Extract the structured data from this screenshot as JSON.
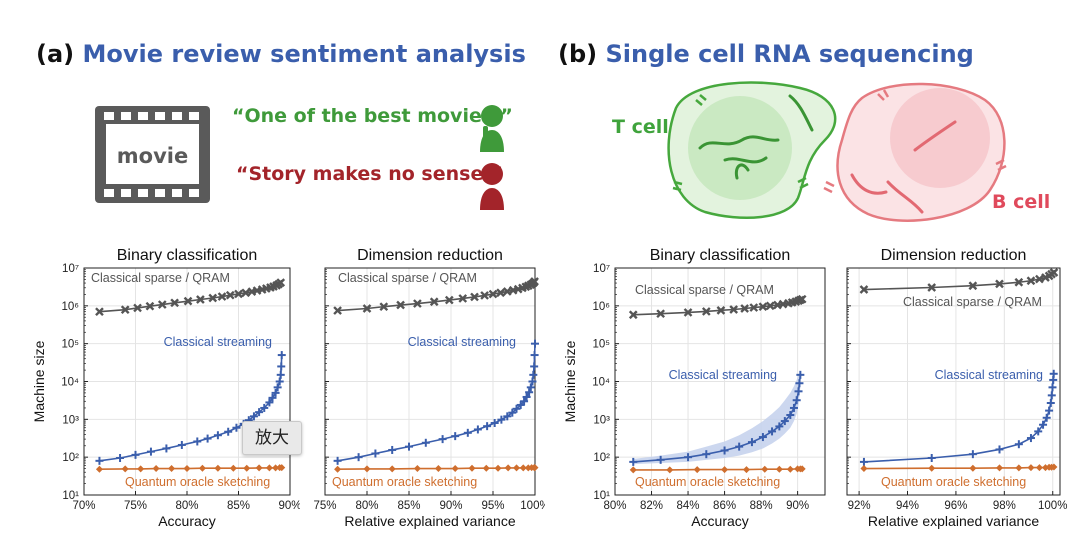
{
  "panels": [
    {
      "label": "(a)",
      "title": "Movie review sentiment analysis"
    },
    {
      "label": "(b)",
      "title": "Single cell RNA sequencing"
    }
  ],
  "illustration_a": {
    "film_label": "movie",
    "quote_positive": "“One of the best movies.”",
    "quote_negative": "“Story makes no sense.”",
    "positive_color": "#3f9a3a",
    "negative_color": "#a3242a",
    "film_color": "#5a5a5a",
    "icons": [
      "film-strip-icon",
      "thumbs-up-person-icon",
      "thumbs-down-person-icon"
    ]
  },
  "illustration_b": {
    "t_cell_label": "T cell",
    "b_cell_label": "B cell",
    "t_cell_color": "#3fa33c",
    "b_cell_color": "#e57a80",
    "icons": [
      "t-cell-icon",
      "b-cell-icon",
      "receptor-icon"
    ]
  },
  "tooltip": {
    "text": "放大"
  },
  "colors": {
    "classical_sparse": "#555555",
    "classical_streaming": "#3a5eac",
    "quantum_oracle": "#cf6e2e",
    "band": "#c3d0ec"
  },
  "chart_data": [
    {
      "type": "line",
      "title": "Binary classification",
      "xlabel": "Accuracy",
      "ylabel": "Machine size",
      "yscale": "log",
      "xlim": [
        70,
        90
      ],
      "ylim": [
        10,
        10000000
      ],
      "grid": true,
      "xticks": [
        70,
        75,
        80,
        85,
        90
      ],
      "xtick_labels": [
        "70%",
        "75%",
        "80%",
        "85%",
        "90%"
      ],
      "yticks": [
        10,
        100,
        1000,
        10000,
        100000,
        1000000,
        10000000
      ],
      "annotations": [
        "Classical sparse / QRAM",
        "Classical streaming",
        "Quantum oracle sketching"
      ],
      "series": [
        {
          "name": "Classical sparse / QRAM",
          "marker": "x",
          "x": [
            71.5,
            74,
            75.2,
            76.4,
            77.6,
            78.8,
            80.1,
            81.3,
            82.5,
            83.4,
            84.2,
            85,
            85.7,
            86.3,
            86.8,
            87.3,
            87.7,
            88.1,
            88.4,
            88.7,
            88.9,
            89.1
          ],
          "y": [
            700000,
            790000,
            880000,
            980000,
            1080000,
            1200000,
            1330000,
            1470000,
            1610000,
            1760000,
            1910000,
            2060000,
            2210000,
            2370000,
            2530000,
            2700000,
            2870000,
            3050000,
            3250000,
            3480000,
            3750000,
            4100000
          ]
        },
        {
          "name": "Classical streaming",
          "marker": "+",
          "x": [
            71.5,
            73.5,
            75,
            76.5,
            78,
            79.5,
            81,
            82,
            83,
            84,
            84.8,
            85.5,
            86,
            86.5,
            87,
            87.5,
            88,
            88.3,
            88.6,
            88.8,
            89,
            89.1,
            89.15,
            89.2
          ],
          "y": [
            80,
            95,
            115,
            140,
            170,
            210,
            260,
            310,
            380,
            470,
            600,
            760,
            950,
            1200,
            1550,
            2000,
            2800,
            3700,
            5000,
            7000,
            10000,
            15000,
            25000,
            50000
          ]
        },
        {
          "name": "Quantum oracle sketching",
          "marker": "D",
          "x": [
            71.5,
            74,
            75.5,
            77,
            78.5,
            80,
            81.5,
            83,
            84.5,
            85.8,
            87,
            88,
            88.6,
            89,
            89.2
          ],
          "y": [
            48,
            49,
            49,
            50,
            50,
            50,
            51,
            51,
            51,
            51,
            52,
            52,
            52,
            53,
            53
          ]
        }
      ]
    },
    {
      "type": "line",
      "title": "Dimension reduction",
      "xlabel": "Relative explained variance",
      "yscale": "log",
      "xlim": [
        75,
        100
      ],
      "ylim": [
        10,
        10000000
      ],
      "grid": true,
      "xticks": [
        75,
        80,
        85,
        90,
        95,
        100
      ],
      "xtick_labels": [
        "75%",
        "80%",
        "85%",
        "90%",
        "95%",
        "100%"
      ],
      "annotations": [
        "Classical sparse / QRAM",
        "Classical streaming",
        "Quantum oracle sketching"
      ],
      "series": [
        {
          "name": "Classical sparse / QRAM",
          "marker": "x",
          "x": [
            76.5,
            80,
            82,
            84,
            86,
            88,
            89.8,
            91.4,
            92.8,
            94,
            95,
            95.9,
            96.7,
            97.4,
            98,
            98.5,
            98.9,
            99.2,
            99.5,
            99.7,
            99.85,
            99.95
          ],
          "y": [
            750000,
            850000,
            950000,
            1050000,
            1150000,
            1280000,
            1420000,
            1570000,
            1720000,
            1880000,
            2050000,
            2220000,
            2400000,
            2580000,
            2770000,
            2970000,
            3180000,
            3400000,
            3620000,
            3850000,
            4100000,
            4400000
          ]
        },
        {
          "name": "Classical streaming",
          "marker": "+",
          "x": [
            76.5,
            79,
            81,
            83,
            85,
            87,
            89,
            90.5,
            92,
            93.2,
            94.3,
            95.2,
            96,
            96.7,
            97.3,
            97.8,
            98.3,
            98.7,
            99,
            99.3,
            99.5,
            99.7,
            99.8,
            99.9,
            99.95,
            100
          ],
          "y": [
            80,
            100,
            125,
            155,
            190,
            240,
            300,
            360,
            440,
            540,
            660,
            800,
            980,
            1200,
            1500,
            1900,
            2400,
            3000,
            3900,
            5200,
            7000,
            10000,
            15000,
            25000,
            50000,
            100000
          ]
        },
        {
          "name": "Quantum oracle sketching",
          "marker": "D",
          "x": [
            76.5,
            80,
            83,
            86,
            88.5,
            90.5,
            92.5,
            94.2,
            95.6,
            96.8,
            97.8,
            98.6,
            99.2,
            99.6,
            99.9,
            100
          ],
          "y": [
            48,
            49,
            49,
            50,
            50,
            50,
            51,
            51,
            51,
            52,
            52,
            52,
            52,
            53,
            53,
            53
          ]
        }
      ]
    },
    {
      "type": "line",
      "title": "Binary classification",
      "xlabel": "Accuracy",
      "ylabel": "Machine size",
      "yscale": "log",
      "xlim": [
        80,
        91.5
      ],
      "ylim": [
        10,
        10000000
      ],
      "grid": true,
      "xticks": [
        80,
        82,
        84,
        86,
        88,
        90
      ],
      "xtick_labels": [
        "80%",
        "82%",
        "84%",
        "86%",
        "88%",
        "90%"
      ],
      "annotations": [
        "Classical sparse / QRAM",
        "Classical streaming",
        "Quantum oracle sketching"
      ],
      "series": [
        {
          "name": "Classical sparse / QRAM",
          "marker": "x",
          "x": [
            81,
            82.5,
            84,
            85,
            85.8,
            86.5,
            87.1,
            87.6,
            88.1,
            88.5,
            88.9,
            89.2,
            89.5,
            89.7,
            89.9,
            90.05,
            90.15,
            90.25
          ],
          "y": [
            580000,
            620000,
            670000,
            710000,
            760000,
            800000,
            850000,
            900000,
            950000,
            1000000,
            1050000,
            1110000,
            1170000,
            1230000,
            1290000,
            1360000,
            1430000,
            1500000
          ]
        },
        {
          "name": "Classical streaming",
          "marker": "+",
          "band": true,
          "x": [
            81,
            82.5,
            84,
            85,
            86,
            86.8,
            87.5,
            88.1,
            88.6,
            89,
            89.3,
            89.6,
            89.8,
            89.95,
            90.05,
            90.1,
            90.15
          ],
          "y": [
            75,
            85,
            100,
            120,
            150,
            190,
            250,
            340,
            480,
            650,
            900,
            1300,
            2000,
            3200,
            5500,
            9000,
            15000
          ],
          "y_low": [
            65,
            70,
            75,
            85,
            95,
            110,
            135,
            170,
            230,
            310,
            420,
            600,
            900,
            1400,
            2400,
            4000,
            7000
          ],
          "y_high": [
            90,
            110,
            140,
            190,
            260,
            380,
            580,
            900,
            1400,
            2100,
            3200,
            5000,
            7500,
            11000,
            15000,
            16000,
            17000
          ]
        },
        {
          "name": "Quantum oracle sketching",
          "marker": "D",
          "x": [
            81,
            83,
            84.5,
            86,
            87.2,
            88.2,
            89,
            89.6,
            90,
            90.15,
            90.25
          ],
          "y": [
            46,
            46,
            47,
            47,
            47,
            48,
            48,
            48,
            49,
            49,
            49
          ]
        }
      ]
    },
    {
      "type": "line",
      "title": "Dimension reduction",
      "xlabel": "Relative explained variance",
      "yscale": "log",
      "xlim": [
        91.5,
        100.3
      ],
      "ylim": [
        10,
        10000000
      ],
      "grid": true,
      "xticks": [
        92,
        94,
        96,
        98,
        100
      ],
      "xtick_labels": [
        "92%",
        "94%",
        "96%",
        "98%",
        "100%"
      ],
      "annotations": [
        "Classical sparse / QRAM",
        "Classical streaming",
        "Quantum oracle sketching"
      ],
      "series": [
        {
          "name": "Classical sparse / QRAM",
          "marker": "x",
          "x": [
            92.2,
            95,
            96.7,
            97.8,
            98.6,
            99.1,
            99.45,
            99.7,
            99.85,
            99.95,
            100.05
          ],
          "y": [
            2700000,
            3050000,
            3400000,
            3800000,
            4200000,
            4600000,
            5100000,
            5600000,
            6200000,
            6900000,
            7600000
          ]
        },
        {
          "name": "Classical streaming",
          "marker": "+",
          "x": [
            92.2,
            95,
            96.7,
            97.8,
            98.6,
            99.1,
            99.4,
            99.6,
            99.75,
            99.85,
            99.92,
            99.96,
            99.99,
            100.02,
            100.04
          ],
          "y": [
            75,
            95,
            120,
            160,
            220,
            320,
            480,
            720,
            1100,
            1700,
            2700,
            4300,
            7000,
            11000,
            16000
          ]
        },
        {
          "name": "Quantum oracle sketching",
          "marker": "D",
          "x": [
            92.2,
            95,
            96.7,
            97.8,
            98.6,
            99.1,
            99.45,
            99.7,
            99.85,
            99.95,
            100.05
          ],
          "y": [
            50,
            51,
            51,
            52,
            52,
            53,
            53,
            53,
            54,
            54,
            55
          ]
        }
      ]
    }
  ]
}
